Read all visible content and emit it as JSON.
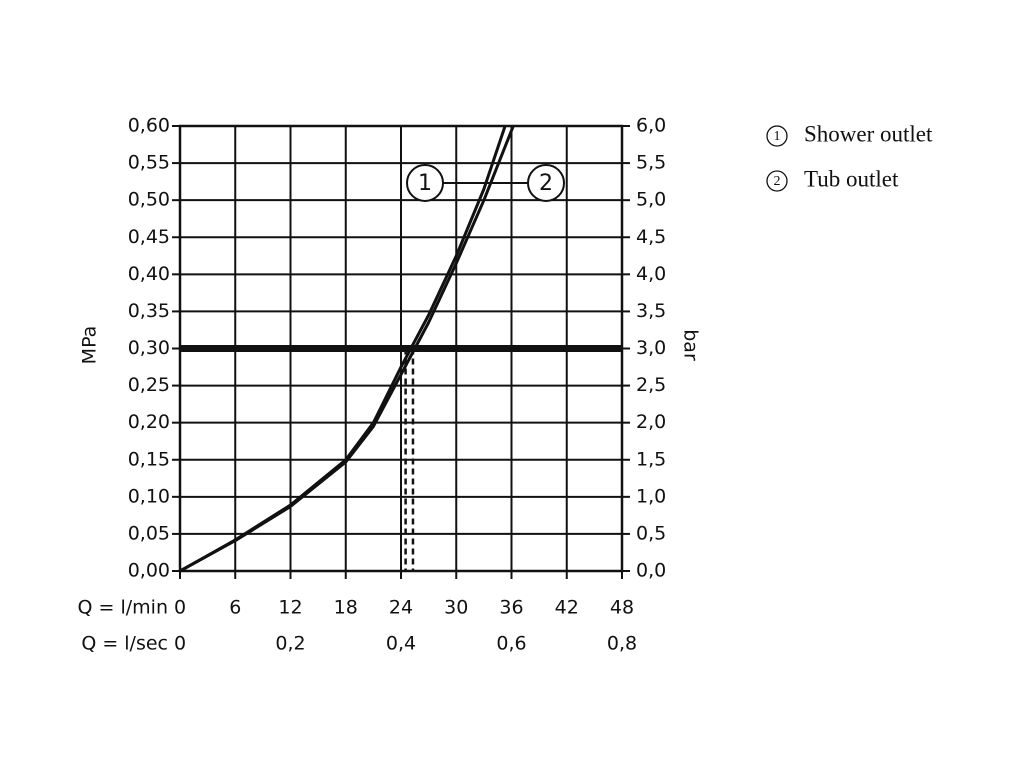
{
  "chart_data": {
    "type": "line",
    "x_label": "Q = l/min",
    "x2_label": "Q = l/sec",
    "y_label": "MPa",
    "y2_label": "bar",
    "xlim": [
      0,
      48
    ],
    "xticks": [
      0,
      6,
      12,
      18,
      24,
      30,
      36,
      42,
      48
    ],
    "x2lim": [
      0,
      0.8
    ],
    "x2ticks": [
      0,
      {
        "value": 0.2,
        "label": "0,2"
      },
      {
        "value": 0.4,
        "label": "0,4"
      },
      {
        "value": 0.6,
        "label": "0,6"
      },
      {
        "value": 0.8,
        "label": "0,8"
      }
    ],
    "ylim": [
      0,
      0.6
    ],
    "yticks": [
      {
        "value": 0,
        "label": "0,00"
      },
      {
        "value": 0.05,
        "label": "0,05"
      },
      {
        "value": 0.1,
        "label": "0,10"
      },
      {
        "value": 0.15,
        "label": "0,15"
      },
      {
        "value": 0.2,
        "label": "0,20"
      },
      {
        "value": 0.25,
        "label": "0,25"
      },
      {
        "value": 0.3,
        "label": "0,30"
      },
      {
        "value": 0.35,
        "label": "0,35"
      },
      {
        "value": 0.4,
        "label": "0,40"
      },
      {
        "value": 0.45,
        "label": "0,45"
      },
      {
        "value": 0.5,
        "label": "0,50"
      },
      {
        "value": 0.55,
        "label": "0,55"
      },
      {
        "value": 0.6,
        "label": "0,60"
      }
    ],
    "y2lim": [
      0,
      6
    ],
    "y2ticks": [
      {
        "value": 0,
        "label": "0,0"
      },
      {
        "value": 0.5,
        "label": "0,5"
      },
      {
        "value": 1,
        "label": "1,0"
      },
      {
        "value": 1.5,
        "label": "1,5"
      },
      {
        "value": 2,
        "label": "2,0"
      },
      {
        "value": 2.5,
        "label": "2,5"
      },
      {
        "value": 3,
        "label": "3,0"
      },
      {
        "value": 3.5,
        "label": "3,5"
      },
      {
        "value": 4,
        "label": "4,0"
      },
      {
        "value": 4.5,
        "label": "4,5"
      },
      {
        "value": 5,
        "label": "5,0"
      },
      {
        "value": 5.5,
        "label": "5,5"
      },
      {
        "value": 6,
        "label": "6,0"
      }
    ],
    "grid": true,
    "hline": 0.3,
    "vlines": [
      24.5,
      25.3
    ],
    "series": [
      {
        "name": "Shower outlet",
        "label": "1",
        "color": "#111111",
        "x": [
          0,
          6,
          12,
          18,
          21,
          24,
          27,
          30,
          33,
          35.3
        ],
        "values": [
          0,
          0.042,
          0.089,
          0.15,
          0.2,
          0.275,
          0.345,
          0.425,
          0.515,
          0.6
        ]
      },
      {
        "name": "Tub outlet",
        "label": "2",
        "color": "#111111",
        "x": [
          0,
          6,
          12,
          18,
          21,
          24,
          27,
          30,
          33,
          36.2
        ],
        "values": [
          0,
          0.041,
          0.087,
          0.147,
          0.195,
          0.265,
          0.335,
          0.415,
          0.5,
          0.6
        ]
      }
    ]
  }
}
